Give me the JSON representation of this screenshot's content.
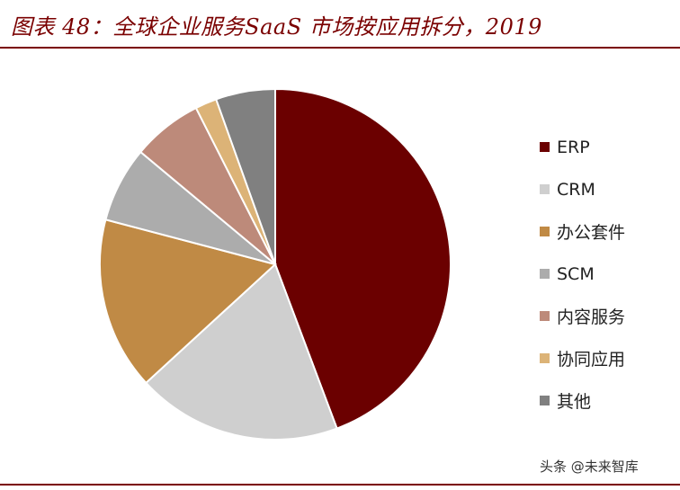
{
  "title": "图表 48：全球企业服务SaaS 市场按应用拆分，2019",
  "watermark": "头条 @未来智库",
  "chart_data": {
    "type": "pie",
    "categories": [
      "ERP",
      "CRM",
      "办公套件",
      "SCM",
      "内容服务",
      "协同应用",
      "其他"
    ],
    "values": [
      44.5,
      19,
      16,
      7,
      6.5,
      2,
      5.5
    ],
    "colors": [
      "#6b0000",
      "#cfcfcf",
      "#c08a45",
      "#acacac",
      "#bd8a7a",
      "#dcb377",
      "#808080"
    ],
    "legend_position": "right"
  }
}
